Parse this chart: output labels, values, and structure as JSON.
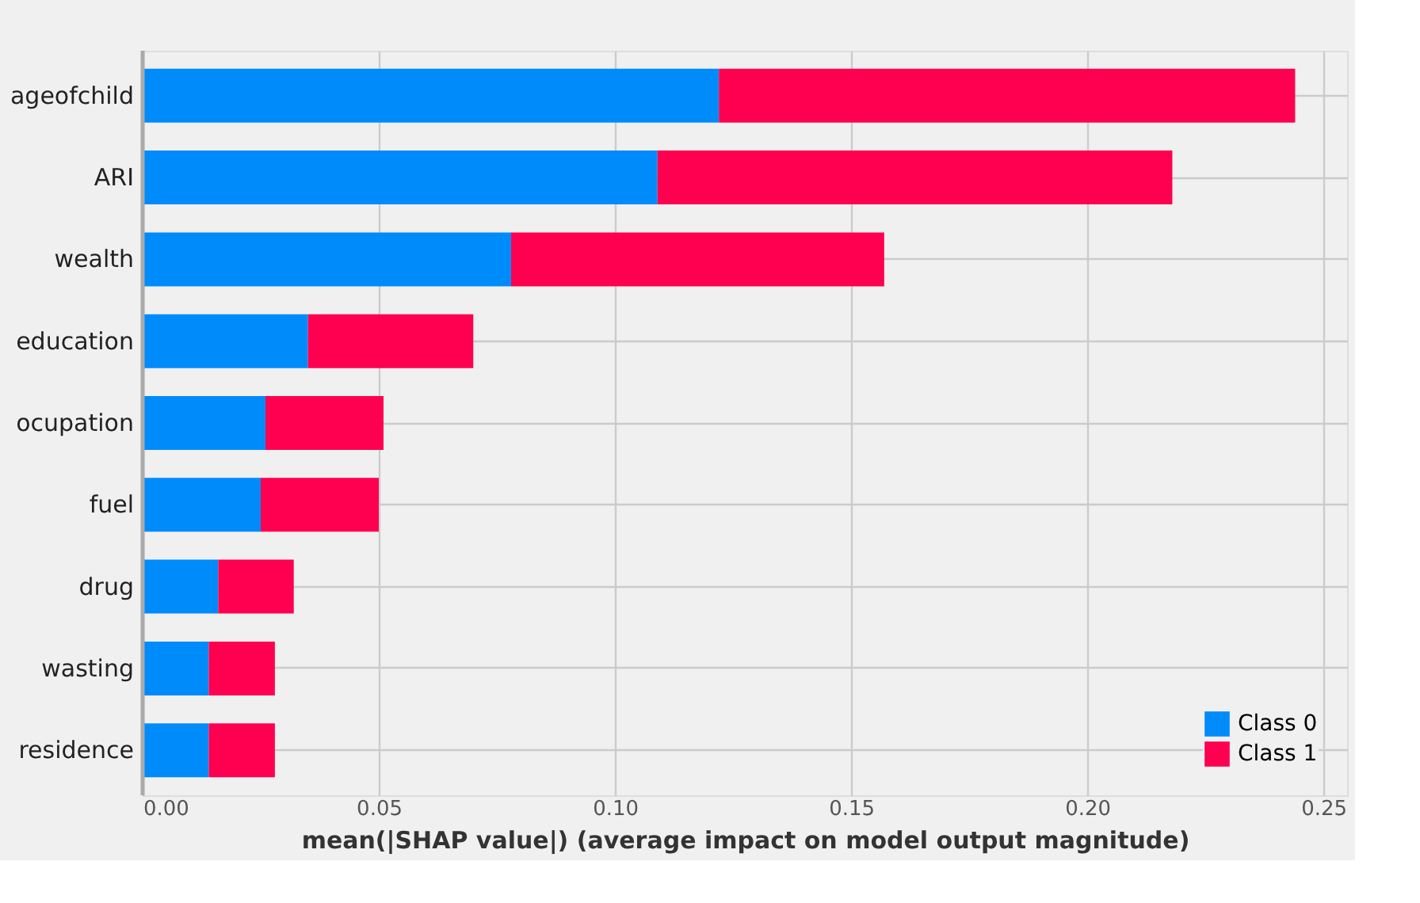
{
  "chart_data": {
    "type": "bar",
    "orientation": "horizontal",
    "stacked": true,
    "xlabel": "mean(|SHAP value|) (average impact on model output magnitude)",
    "categories": [
      "ageofchild",
      "ARI",
      "wealth",
      "education",
      "ocupation",
      "fuel",
      "drug",
      "wasting",
      "residence"
    ],
    "series": [
      {
        "name": "Class 0",
        "color": "#008bfb",
        "values": [
          0.122,
          0.109,
          0.078,
          0.035,
          0.026,
          0.025,
          0.016,
          0.014,
          0.014
        ]
      },
      {
        "name": "Class 1",
        "color": "#ff0051",
        "values": [
          0.122,
          0.109,
          0.079,
          0.035,
          0.025,
          0.025,
          0.016,
          0.014,
          0.014
        ]
      }
    ],
    "xlim": [
      0,
      0.255
    ],
    "xticks": [
      {
        "value": 0,
        "label": "0.00"
      },
      0.05,
      {
        "value": 0.1,
        "label": "0.10"
      },
      0.15,
      {
        "value": 0.2,
        "label": "0.20"
      },
      0.25
    ],
    "grid": true,
    "legend": "bottom right"
  }
}
